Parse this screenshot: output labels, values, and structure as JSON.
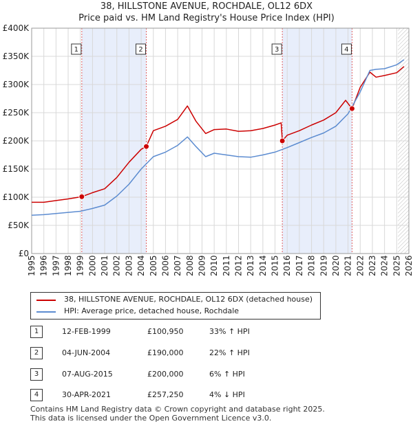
{
  "title_line1": "38, HILLSTONE AVENUE, ROCHDALE, OL12 6DX",
  "title_line2": "Price paid vs. HM Land Registry's House Price Index (HPI)",
  "colors": {
    "price": "#cc0000",
    "hpi": "#5b8bd0",
    "shade": "#e8eefb",
    "grid": "#d8d8d8",
    "vline": "#e06060"
  },
  "chart_data": {
    "type": "line",
    "title": "Price paid vs. HM Land Registry's House Price Index (HPI)",
    "xlim": [
      1995,
      2026
    ],
    "ylim": [
      0,
      400000
    ],
    "x_ticks": [
      "1995",
      "1996",
      "1997",
      "1998",
      "1999",
      "2000",
      "2001",
      "2002",
      "2003",
      "2004",
      "2005",
      "2006",
      "2007",
      "2008",
      "2009",
      "2010",
      "2011",
      "2012",
      "2013",
      "2014",
      "2015",
      "2016",
      "2017",
      "2018",
      "2019",
      "2020",
      "2021",
      "2022",
      "2023",
      "2024",
      "2025",
      "2026"
    ],
    "y_ticks": [
      {
        "value": 0,
        "label": "£0"
      },
      {
        "value": 50000,
        "label": "£50K"
      },
      {
        "value": 100000,
        "label": "£100K"
      },
      {
        "value": 150000,
        "label": "£150K"
      },
      {
        "value": 200000,
        "label": "£200K"
      },
      {
        "value": 250000,
        "label": "£250K"
      },
      {
        "value": 300000,
        "label": "£300K"
      },
      {
        "value": 350000,
        "label": "£350K"
      },
      {
        "value": 400000,
        "label": "£400K"
      }
    ],
    "shaded_ranges": [
      [
        1999.12,
        2004.42
      ],
      [
        2015.6,
        2021.33
      ]
    ],
    "hatched_from": 2025.1,
    "series": [
      {
        "name": "38, HILLSTONE AVENUE, ROCHDALE, OL12 6DX (detached house)",
        "key": "price",
        "points": [
          [
            1995,
            91000
          ],
          [
            1996,
            91000
          ],
          [
            1997,
            94000
          ],
          [
            1998,
            97000
          ],
          [
            1999.12,
            100950
          ],
          [
            2000,
            108000
          ],
          [
            2001,
            115000
          ],
          [
            2002,
            135000
          ],
          [
            2003,
            162000
          ],
          [
            2004,
            185000
          ],
          [
            2004.42,
            190000
          ],
          [
            2005,
            218000
          ],
          [
            2006,
            226000
          ],
          [
            2007,
            238000
          ],
          [
            2007.8,
            262000
          ],
          [
            2008.5,
            235000
          ],
          [
            2009.3,
            213000
          ],
          [
            2010,
            220000
          ],
          [
            2011,
            221000
          ],
          [
            2012,
            217000
          ],
          [
            2013,
            218000
          ],
          [
            2014,
            222000
          ],
          [
            2015,
            228000
          ],
          [
            2015.5,
            232000
          ],
          [
            2015.6,
            200000
          ],
          [
            2016,
            210000
          ],
          [
            2017,
            218000
          ],
          [
            2018,
            228000
          ],
          [
            2019,
            237000
          ],
          [
            2020,
            250000
          ],
          [
            2020.8,
            272000
          ],
          [
            2021.33,
            257250
          ],
          [
            2022,
            295000
          ],
          [
            2022.8,
            322000
          ],
          [
            2023.3,
            313000
          ],
          [
            2024,
            316000
          ],
          [
            2025,
            321000
          ],
          [
            2025.6,
            332000
          ]
        ]
      },
      {
        "name": "HPI: Average price, detached house, Rochdale",
        "key": "hpi",
        "points": [
          [
            1995,
            68000
          ],
          [
            1996,
            69000
          ],
          [
            1997,
            71000
          ],
          [
            1998,
            73000
          ],
          [
            1999,
            75000
          ],
          [
            2000,
            80000
          ],
          [
            2001,
            86000
          ],
          [
            2002,
            102000
          ],
          [
            2003,
            123000
          ],
          [
            2004,
            150000
          ],
          [
            2005,
            172000
          ],
          [
            2006,
            180000
          ],
          [
            2007,
            192000
          ],
          [
            2007.8,
            207000
          ],
          [
            2008.5,
            190000
          ],
          [
            2009.3,
            172000
          ],
          [
            2010,
            178000
          ],
          [
            2011,
            175000
          ],
          [
            2012,
            172000
          ],
          [
            2013,
            171000
          ],
          [
            2014,
            175000
          ],
          [
            2015,
            180000
          ],
          [
            2016,
            188000
          ],
          [
            2017,
            197000
          ],
          [
            2018,
            206000
          ],
          [
            2019,
            214000
          ],
          [
            2020,
            226000
          ],
          [
            2021,
            248000
          ],
          [
            2022,
            287000
          ],
          [
            2022.8,
            325000
          ],
          [
            2023.3,
            327000
          ],
          [
            2024,
            328000
          ],
          [
            2025,
            335000
          ],
          [
            2025.6,
            344000
          ]
        ]
      }
    ],
    "sales": [
      {
        "n": "1",
        "x": 1999.12,
        "price": 100950
      },
      {
        "n": "2",
        "x": 2004.42,
        "price": 190000
      },
      {
        "n": "3",
        "x": 2015.6,
        "price": 200000
      },
      {
        "n": "4",
        "x": 2021.33,
        "price": 257250
      }
    ]
  },
  "legend": {
    "price_label": "38, HILLSTONE AVENUE, ROCHDALE, OL12 6DX (detached house)",
    "hpi_label": "HPI: Average price, detached house, Rochdale"
  },
  "sales_table": [
    {
      "n": "1",
      "date": "12-FEB-1999",
      "price": "£100,950",
      "hpi": "33% ↑ HPI"
    },
    {
      "n": "2",
      "date": "04-JUN-2004",
      "price": "£190,000",
      "hpi": "22% ↑ HPI"
    },
    {
      "n": "3",
      "date": "07-AUG-2015",
      "price": "£200,000",
      "hpi": "6% ↑ HPI"
    },
    {
      "n": "4",
      "date": "30-APR-2021",
      "price": "£257,250",
      "hpi": "4% ↓ HPI"
    }
  ],
  "footer": {
    "line1": "Contains HM Land Registry data © Crown copyright and database right 2025.",
    "line2": "This data is licensed under the Open Government Licence v3.0."
  }
}
